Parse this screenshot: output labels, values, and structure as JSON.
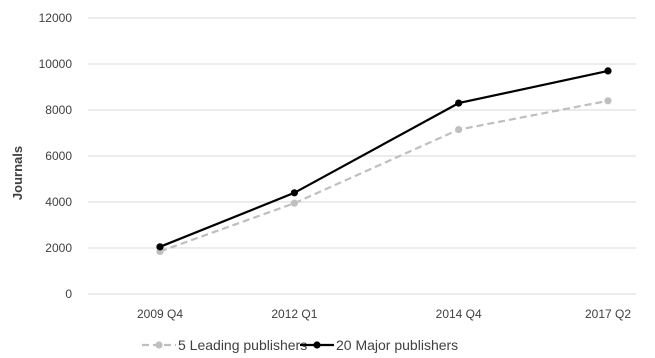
{
  "chart_data": {
    "type": "line",
    "categories": [
      "2009 Q4",
      "2012 Q1",
      "2014 Q4",
      "2017 Q2"
    ],
    "x": [
      2009.75,
      2012.0,
      2014.75,
      2017.25
    ],
    "ylabel": "Journals",
    "ylim": [
      0,
      12000
    ],
    "yticks": [
      0,
      2000,
      4000,
      6000,
      8000,
      10000,
      12000
    ],
    "grid": true,
    "legend_position": "bottom",
    "series": [
      {
        "name": "5 Leading publishers",
        "values": [
          1850,
          3950,
          7150,
          8400
        ],
        "color": "#bfbfbf",
        "dash": "dashed"
      },
      {
        "name": "20 Major publishers",
        "values": [
          2050,
          4400,
          8300,
          9700
        ],
        "color": "#000000",
        "dash": "solid"
      }
    ]
  }
}
